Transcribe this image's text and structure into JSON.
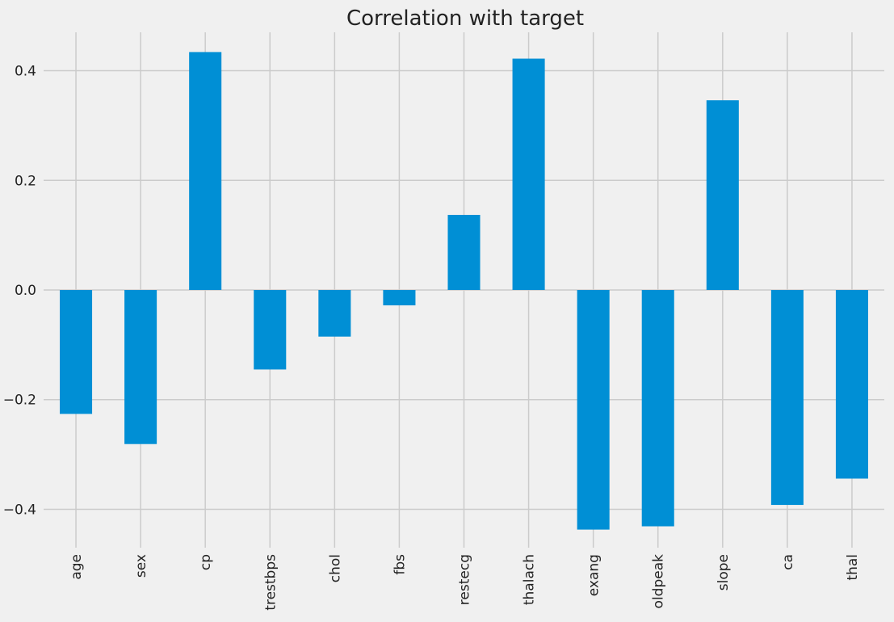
{
  "chart_data": {
    "type": "bar",
    "title": "Correlation with target",
    "xlabel": "",
    "ylabel": "",
    "categories": [
      "age",
      "sex",
      "cp",
      "trestbps",
      "chol",
      "fbs",
      "restecg",
      "thalach",
      "exang",
      "oldpeak",
      "slope",
      "ca",
      "thal"
    ],
    "values": [
      -0.226,
      -0.281,
      0.434,
      -0.145,
      -0.085,
      -0.028,
      0.137,
      0.422,
      -0.437,
      -0.431,
      0.346,
      -0.392,
      -0.344
    ],
    "ylim": [
      -0.47,
      0.47
    ],
    "yticks": [
      -0.4,
      -0.2,
      0.0,
      0.2,
      0.4
    ],
    "ytick_labels": [
      "−0.4",
      "−0.2",
      "0.0",
      "0.2",
      "0.4"
    ],
    "grid": true,
    "colors": {
      "bar": "#008fd5",
      "background": "#f0f0f0",
      "grid": "#cbcbcb",
      "text": "#222222"
    }
  }
}
